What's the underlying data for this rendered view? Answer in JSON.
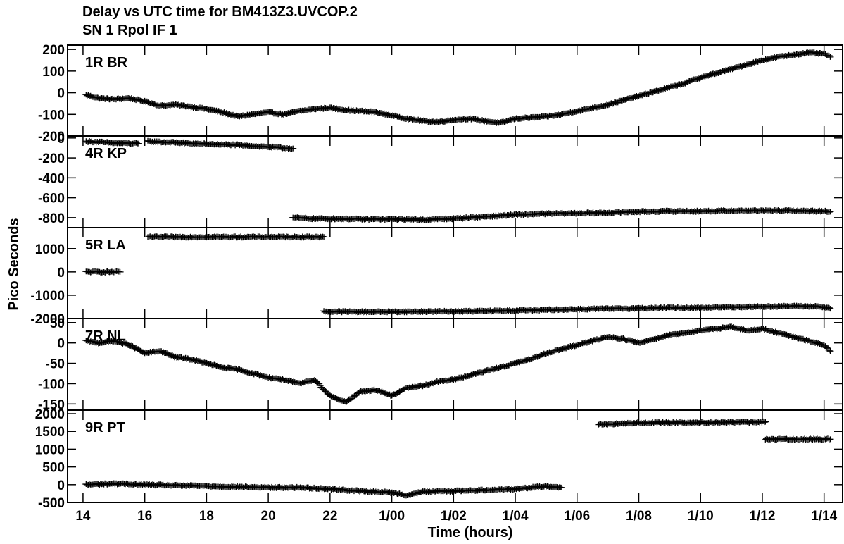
{
  "chart_data": {
    "type": "scatter",
    "title": "Delay vs UTC time for BM413Z3.UVCOP.2",
    "subtitle": "SN 1  Rpol  IF 1",
    "xlabel": "Time (hours)",
    "ylabel": "Pico Seconds",
    "marker": "plus",
    "x_units": "hours since 00:00 of first day",
    "xlim": [
      13.5,
      38.6
    ],
    "x_ticks": [
      {
        "value": 14,
        "label": "14"
      },
      {
        "value": 16,
        "label": "16"
      },
      {
        "value": 18,
        "label": "18"
      },
      {
        "value": 20,
        "label": "20"
      },
      {
        "value": 22,
        "label": "22"
      },
      {
        "value": 24,
        "label": "1/00"
      },
      {
        "value": 26,
        "label": "1/02"
      },
      {
        "value": 28,
        "label": "1/04"
      },
      {
        "value": 30,
        "label": "1/06"
      },
      {
        "value": 32,
        "label": "1/08"
      },
      {
        "value": 34,
        "label": "1/10"
      },
      {
        "value": 36,
        "label": "1/12"
      },
      {
        "value": 38,
        "label": "1/14"
      }
    ],
    "panels": [
      {
        "label": "1R BR",
        "ylim": [
          -200,
          220
        ],
        "y_ticks": [
          200,
          100,
          0,
          -100,
          -200
        ],
        "y_tick_labels": [
          "200",
          "100",
          "0",
          "-100",
          "-200"
        ],
        "segments": [
          {
            "x": [
              14.1,
              14.5,
              15.0,
              15.5,
              16.0,
              16.5,
              17.0,
              17.5,
              18.0,
              18.5,
              19.0,
              19.5,
              20.0,
              20.5,
              21.0,
              21.5,
              22.0,
              22.5,
              23.0,
              23.5,
              24.0,
              24.5,
              25.0,
              25.5,
              26.0,
              26.5,
              27.0,
              27.5,
              28.0,
              28.5,
              29.0,
              29.5,
              30.0,
              30.5,
              31.0,
              31.5,
              32.0,
              32.5,
              33.0,
              33.5,
              34.0,
              34.5,
              35.0,
              35.5,
              36.0,
              36.5,
              37.0,
              37.5,
              38.0,
              38.2
            ],
            "y": [
              -10,
              -25,
              -30,
              -25,
              -40,
              -60,
              -55,
              -65,
              -75,
              -90,
              -110,
              -100,
              -90,
              -100,
              -85,
              -75,
              -70,
              -80,
              -85,
              -90,
              -105,
              -120,
              -130,
              -135,
              -125,
              -120,
              -130,
              -140,
              -120,
              -115,
              -110,
              -100,
              -85,
              -70,
              -55,
              -35,
              -15,
              5,
              25,
              45,
              70,
              90,
              110,
              130,
              150,
              165,
              175,
              185,
              180,
              165
            ]
          }
        ]
      },
      {
        "label": "4R KP",
        "ylim": [
          -900,
          20
        ],
        "y_ticks": [
          0,
          -200,
          -400,
          -600,
          -800
        ],
        "y_tick_labels": [
          "0",
          "-200",
          "-400",
          "-600",
          "-800"
        ],
        "segments": [
          {
            "x": [
              14.1,
              14.5,
              15.0,
              15.5,
              15.8
            ],
            "y": [
              -35,
              -40,
              -50,
              -55,
              -55
            ]
          },
          {
            "x": [
              16.1,
              16.5,
              17.0,
              17.5,
              18.0,
              18.5,
              19.0,
              19.5,
              20.0,
              20.5,
              20.8
            ],
            "y": [
              -35,
              -40,
              -45,
              -55,
              -60,
              -65,
              -70,
              -80,
              -90,
              -100,
              -105
            ]
          },
          {
            "x": [
              20.8,
              21.5,
              22.0,
              23.0,
              24.0,
              25.0,
              26.0,
              27.0,
              28.0,
              29.0,
              30.0,
              31.0,
              32.0,
              33.0,
              34.0,
              35.0,
              36.0,
              37.0,
              38.0,
              38.2
            ],
            "y": [
              -800,
              -810,
              -810,
              -815,
              -815,
              -820,
              -810,
              -790,
              -770,
              -760,
              -755,
              -750,
              -740,
              -735,
              -735,
              -730,
              -730,
              -730,
              -735,
              -740
            ]
          }
        ]
      },
      {
        "label": "5R LA",
        "ylim": [
          -2000,
          1900
        ],
        "y_ticks": [
          1000,
          0,
          -1000,
          -2000
        ],
        "y_tick_labels": [
          "1000",
          "0",
          "-1000",
          "-2000"
        ],
        "segments": [
          {
            "x": [
              14.1,
              14.5,
              15.0,
              15.2
            ],
            "y": [
              0,
              0,
              0,
              0
            ]
          },
          {
            "x": [
              16.1,
              17.0,
              18.0,
              19.0,
              20.0,
              21.0,
              21.8
            ],
            "y": [
              1500,
              1500,
              1500,
              1500,
              1500,
              1500,
              1500
            ]
          },
          {
            "x": [
              21.8,
              23.0,
              24.0,
              25.0,
              26.0,
              27.0,
              28.0,
              29.0,
              30.0,
              31.0,
              32.0,
              33.0,
              34.0,
              35.0,
              36.0,
              37.0,
              37.8,
              38.2
            ],
            "y": [
              -1700,
              -1710,
              -1710,
              -1700,
              -1690,
              -1680,
              -1660,
              -1630,
              -1600,
              -1580,
              -1560,
              -1540,
              -1530,
              -1510,
              -1490,
              -1470,
              -1480,
              -1580
            ]
          }
        ]
      },
      {
        "label": "7R NL",
        "ylim": [
          -165,
          60
        ],
        "y_ticks": [
          50,
          0,
          -50,
          -100,
          -150
        ],
        "y_tick_labels": [
          "50",
          "0",
          "-50",
          "-100",
          "-150"
        ],
        "segments": [
          {
            "x": [
              14.1,
              14.5,
              15.0,
              15.5,
              16.0,
              16.5,
              17.0,
              17.5,
              18.0,
              18.5,
              19.0,
              19.5,
              20.0,
              20.5,
              21.0,
              21.5,
              22.0,
              22.5,
              23.0,
              23.5,
              24.0,
              24.5,
              25.0,
              25.5,
              26.0,
              26.5,
              27.0,
              27.5,
              28.0,
              28.5,
              29.0,
              29.5,
              30.0,
              30.5,
              31.0,
              31.5,
              32.0,
              32.5,
              33.0,
              33.5,
              34.0,
              34.5,
              35.0,
              35.5,
              36.0,
              36.5,
              37.0,
              37.5,
              38.0,
              38.2
            ],
            "y": [
              5,
              0,
              5,
              -5,
              -25,
              -20,
              -35,
              -40,
              -50,
              -60,
              -65,
              -75,
              -85,
              -90,
              -100,
              -90,
              -130,
              -145,
              -120,
              -115,
              -130,
              -110,
              -105,
              -95,
              -90,
              -80,
              -70,
              -60,
              -50,
              -40,
              -25,
              -15,
              -5,
              5,
              15,
              10,
              0,
              10,
              20,
              25,
              30,
              35,
              40,
              30,
              35,
              25,
              15,
              5,
              -5,
              -20
            ]
          }
        ]
      },
      {
        "label": "9R PT",
        "ylim": [
          -500,
          2100
        ],
        "y_ticks": [
          2000,
          1500,
          1000,
          500,
          0,
          -500
        ],
        "y_tick_labels": [
          "2000",
          "1500",
          "1000",
          "500",
          "0",
          "-500"
        ],
        "segments": [
          {
            "x": [
              14.1,
              15.0,
              16.0,
              17.0,
              18.0,
              19.0,
              20.0,
              21.0,
              22.0,
              23.0,
              24.0,
              24.5,
              25.0,
              26.0,
              27.0,
              28.0,
              28.5,
              29.0,
              29.5
            ],
            "y": [
              0,
              30,
              0,
              -20,
              -40,
              -60,
              -80,
              -80,
              -120,
              -180,
              -220,
              -300,
              -200,
              -180,
              -150,
              -120,
              -80,
              -40,
              -80
            ]
          },
          {
            "x": [
              30.7,
              31.5,
              32.0,
              33.0,
              34.0,
              35.0,
              35.8,
              36.1
            ],
            "y": [
              1700,
              1720,
              1740,
              1750,
              1750,
              1760,
              1760,
              1770
            ]
          },
          {
            "x": [
              36.1,
              37.0,
              38.0,
              38.2
            ],
            "y": [
              1280,
              1280,
              1280,
              1280
            ]
          }
        ]
      }
    ]
  }
}
